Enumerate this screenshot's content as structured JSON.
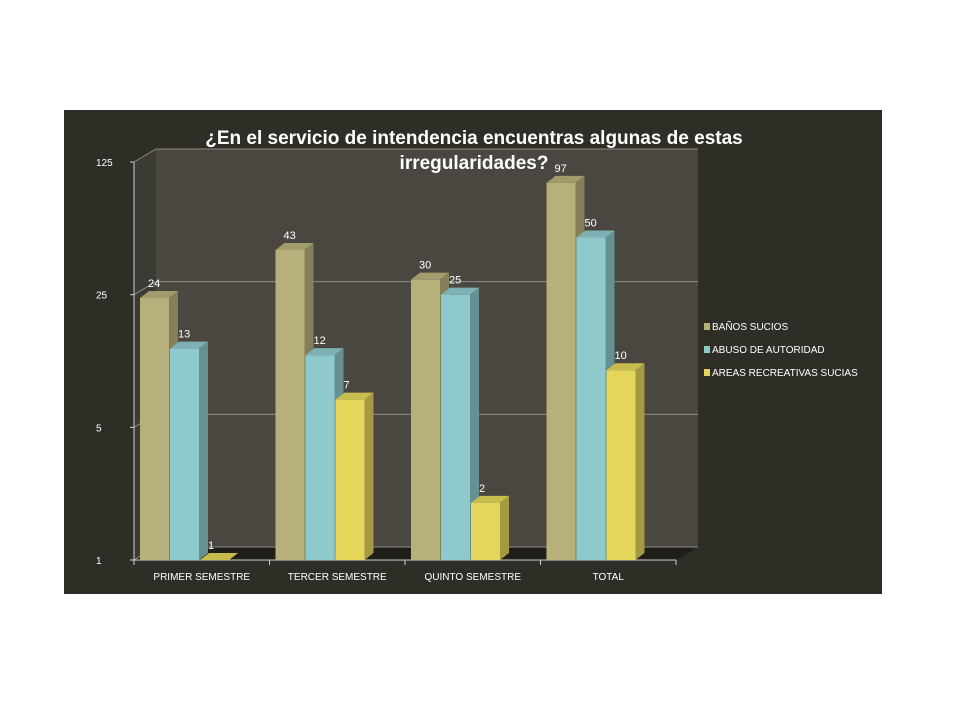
{
  "chart_data": {
    "type": "bar",
    "title_lines": [
      "¿En el servicio de intendencia encuentras algunas de estas",
      "irregularidades?"
    ],
    "categories": [
      "PRIMER SEMESTRE",
      "TERCER SEMESTRE",
      "QUINTO SEMESTRE",
      "TOTAL"
    ],
    "series": [
      {
        "name": "BAÑOS SUCIOS",
        "values": [
          24,
          43,
          30,
          97
        ],
        "color": "#b8b07a"
      },
      {
        "name": "ABUSO DE AUTORIDAD",
        "values": [
          13,
          12,
          25,
          50
        ],
        "color": "#8ec9cc"
      },
      {
        "name": "AREAS RECREATIVAS SUCIAS",
        "values": [
          1,
          7,
          2,
          10
        ],
        "color": "#e3d65a"
      }
    ],
    "y_scale": "log",
    "y_ticks": [
      1,
      5,
      25,
      125
    ],
    "ylim": [
      1,
      125
    ],
    "grid": true,
    "legend_position": "right",
    "background_color": "#2f2e26",
    "plot_wall_color": "#4a4741"
  }
}
